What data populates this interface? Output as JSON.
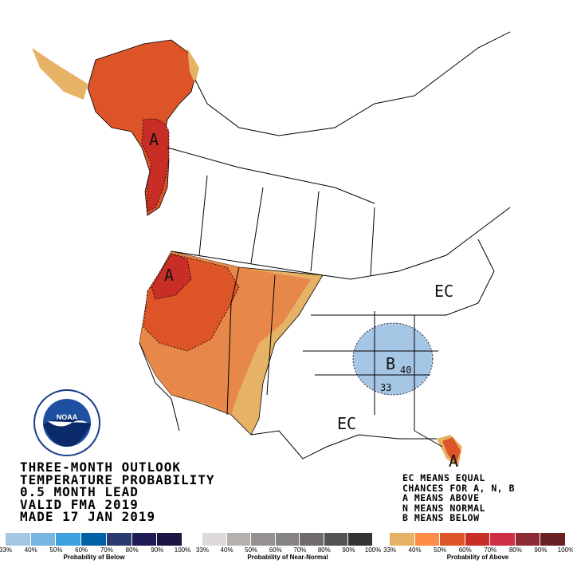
{
  "title_lines": [
    "THREE-MONTH OUTLOOK",
    "TEMPERATURE PROBABILITY",
    "0.5 MONTH LEAD",
    "VALID FMA 2019",
    "MADE 17 JAN 2019"
  ],
  "key_lines": [
    "EC MEANS EQUAL",
    "CHANCES FOR A, N, B",
    "A MEANS ABOVE",
    "N MEANS NORMAL",
    "B MEANS BELOW"
  ],
  "logo_text": "NOAA",
  "map_labels": {
    "alaska_a": "A",
    "nw_a": "A",
    "ec_northeast": "EC",
    "b_southeast": "B",
    "b_contour": "40",
    "contour_33": "33",
    "ec_south": "EC",
    "florida_a": "A"
  },
  "legends": [
    {
      "caption": "Probability of Below",
      "ticks": [
        "33%",
        "40%",
        "50%",
        "60%",
        "70%",
        "80%",
        "90%",
        "100%"
      ],
      "colors": [
        "#a6c6e6",
        "#79b5e3",
        "#3ea0dd",
        "#0061a6",
        "#2b3a6f",
        "#211b58",
        "#1d1444"
      ]
    },
    {
      "caption": "Probability of Near-Normal",
      "ticks": [
        "33%",
        "40%",
        "50%",
        "60%",
        "70%",
        "80%",
        "90%",
        "100%"
      ],
      "colors": [
        "#e0d9d9",
        "#b5b0ae",
        "#949190",
        "#868483",
        "#6e6b6a",
        "#545354",
        "#353334"
      ]
    },
    {
      "caption": "Probability of Above",
      "ticks": [
        "33%",
        "40%",
        "50%",
        "60%",
        "70%",
        "80%",
        "90%",
        "100%"
      ],
      "colors": [
        "#e6b265",
        "#ff8c47",
        "#dc5428",
        "#c92e26",
        "#cf2f44",
        "#8e2a35",
        "#682023"
      ]
    }
  ]
}
